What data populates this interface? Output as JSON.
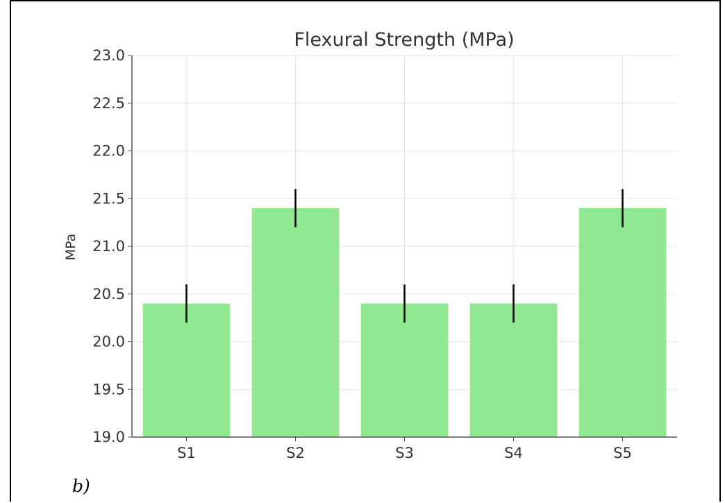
{
  "panel_label": "b)",
  "colors": {
    "bar": "#90e890",
    "error_bar": "#000000",
    "grid": "#e6e6e6",
    "axis": "#555555"
  },
  "chart_data": {
    "type": "bar",
    "title": "Flexural Strength (MPa)",
    "xlabel": "",
    "ylabel": "MPa",
    "categories": [
      "S1",
      "S2",
      "S3",
      "S4",
      "S5"
    ],
    "values": [
      20.4,
      21.4,
      20.4,
      20.4,
      21.4
    ],
    "error": [
      0.2,
      0.2,
      0.2,
      0.2,
      0.2
    ],
    "ylim": [
      19.0,
      23.0
    ],
    "yticks": [
      "19.0",
      "19.5",
      "20.0",
      "20.5",
      "21.0",
      "21.5",
      "22.0",
      "22.5",
      "23.0"
    ],
    "grid": true,
    "legend": false
  }
}
